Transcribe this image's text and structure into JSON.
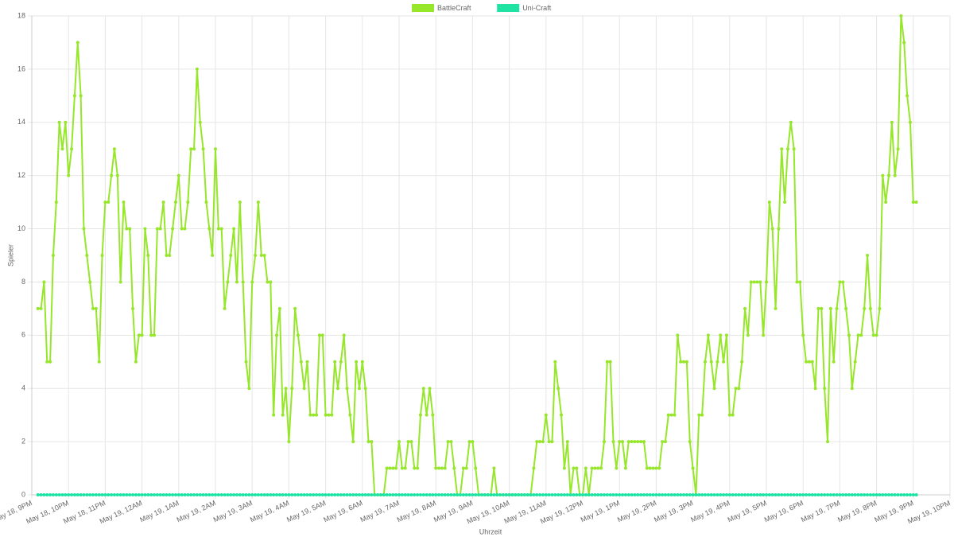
{
  "chart_data": {
    "type": "line",
    "x_label": "Uhrzeit",
    "y_label": "Spieler",
    "legend": "top",
    "grid": true,
    "ylim": [
      0,
      18
    ],
    "yticks": [
      0,
      2,
      4,
      6,
      8,
      10,
      12,
      14,
      16,
      18
    ],
    "categories": [
      "May 18, 9PM",
      null,
      null,
      null,
      null,
      null,
      null,
      null,
      null,
      null,
      null,
      null,
      "May 18, 10PM",
      null,
      null,
      null,
      null,
      null,
      null,
      null,
      null,
      null,
      null,
      null,
      "May 18, 11PM",
      null,
      null,
      null,
      null,
      null,
      null,
      null,
      null,
      null,
      null,
      null,
      "May 19, 12AM",
      null,
      null,
      null,
      null,
      null,
      null,
      null,
      null,
      null,
      null,
      null,
      "May 19, 1AM",
      null,
      null,
      null,
      null,
      null,
      null,
      null,
      null,
      null,
      null,
      null,
      "May 19, 2AM",
      null,
      null,
      null,
      null,
      null,
      null,
      null,
      null,
      null,
      null,
      null,
      "May 19, 3AM",
      null,
      null,
      null,
      null,
      null,
      null,
      null,
      null,
      null,
      null,
      null,
      "May 19, 4AM",
      null,
      null,
      null,
      null,
      null,
      null,
      null,
      null,
      null,
      null,
      null,
      "May 19, 5AM",
      null,
      null,
      null,
      null,
      null,
      null,
      null,
      null,
      null,
      null,
      null,
      "May 19, 6AM",
      null,
      null,
      null,
      null,
      null,
      null,
      null,
      null,
      null,
      null,
      null,
      "May 19, 7AM",
      null,
      null,
      null,
      null,
      null,
      null,
      null,
      null,
      null,
      null,
      null,
      "May 19, 8AM",
      null,
      null,
      null,
      null,
      null,
      null,
      null,
      null,
      null,
      null,
      null,
      "May 19, 9AM",
      null,
      null,
      null,
      null,
      null,
      null,
      null,
      null,
      null,
      null,
      null,
      "May 19, 10AM",
      null,
      null,
      null,
      null,
      null,
      null,
      null,
      null,
      null,
      null,
      null,
      "May 19, 11AM",
      null,
      null,
      null,
      null,
      null,
      null,
      null,
      null,
      null,
      null,
      null,
      "May 19, 12PM",
      null,
      null,
      null,
      null,
      null,
      null,
      null,
      null,
      null,
      null,
      null,
      "May 19, 1PM",
      null,
      null,
      null,
      null,
      null,
      null,
      null,
      null,
      null,
      null,
      null,
      "May 19, 2PM",
      null,
      null,
      null,
      null,
      null,
      null,
      null,
      null,
      null,
      null,
      null,
      "May 19, 3PM",
      null,
      null,
      null,
      null,
      null,
      null,
      null,
      null,
      null,
      null,
      null,
      "May 19, 4PM",
      null,
      null,
      null,
      null,
      null,
      null,
      null,
      null,
      null,
      null,
      null,
      "May 19, 5PM",
      null,
      null,
      null,
      null,
      null,
      null,
      null,
      null,
      null,
      null,
      null,
      "May 19, 6PM",
      null,
      null,
      null,
      null,
      null,
      null,
      null,
      null,
      null,
      null,
      null,
      "May 19, 7PM",
      null,
      null,
      null,
      null,
      null,
      null,
      null,
      null,
      null,
      null,
      null,
      "May 19, 8PM",
      null,
      null,
      null,
      null,
      null,
      null,
      null,
      null,
      null,
      null,
      null,
      "May 19, 9PM",
      null,
      null,
      null,
      null,
      null,
      null,
      null,
      null,
      null,
      null,
      null,
      "May 19, 10PM"
    ],
    "series": [
      {
        "name": "BattleCraft",
        "color": "#96e62a",
        "values": [
          null,
          null,
          7,
          7,
          8,
          5,
          5,
          9,
          11,
          14,
          13,
          14,
          12,
          13,
          15,
          17,
          15,
          10,
          9,
          8,
          7,
          7,
          5,
          9,
          11,
          11,
          12,
          13,
          12,
          8,
          11,
          10,
          10,
          7,
          5,
          6,
          6,
          10,
          9,
          6,
          6,
          10,
          10,
          11,
          9,
          9,
          10,
          11,
          12,
          10,
          10,
          11,
          13,
          13,
          16,
          14,
          13,
          11,
          10,
          9,
          13,
          10,
          10,
          7,
          8,
          9,
          10,
          8,
          11,
          8,
          5,
          4,
          8,
          9,
          11,
          9,
          9,
          8,
          8,
          3,
          6,
          7,
          3,
          4,
          2,
          4,
          7,
          6,
          5,
          4,
          5,
          3,
          3,
          3,
          6,
          6,
          3,
          3,
          3,
          5,
          4,
          5,
          6,
          4,
          3,
          2,
          5,
          4,
          5,
          4,
          2,
          2,
          0,
          0,
          0,
          0,
          1,
          1,
          1,
          1,
          2,
          1,
          1,
          2,
          2,
          1,
          1,
          3,
          4,
          3,
          4,
          3,
          1,
          1,
          1,
          1,
          2,
          2,
          1,
          0,
          0,
          1,
          1,
          2,
          2,
          1,
          0,
          0,
          0,
          0,
          0,
          1,
          0,
          0,
          0,
          0,
          0,
          0,
          0,
          0,
          0,
          0,
          0,
          0,
          1,
          2,
          2,
          2,
          3,
          2,
          2,
          5,
          4,
          3,
          1,
          2,
          0,
          1,
          1,
          0,
          0,
          1,
          0,
          1,
          1,
          1,
          1,
          2,
          5,
          5,
          2,
          1,
          2,
          2,
          1,
          2,
          2,
          2,
          2,
          2,
          2,
          1,
          1,
          1,
          1,
          1,
          2,
          2,
          3,
          3,
          3,
          6,
          5,
          5,
          5,
          2,
          1,
          0,
          3,
          3,
          5,
          6,
          5,
          4,
          5,
          6,
          5,
          6,
          3,
          3,
          4,
          4,
          5,
          7,
          6,
          8,
          8,
          8,
          8,
          6,
          8,
          11,
          10,
          7,
          10,
          13,
          11,
          13,
          14,
          13,
          8,
          8,
          6,
          5,
          5,
          5,
          4,
          7,
          7,
          4,
          2,
          7,
          5,
          7,
          8,
          8,
          7,
          6,
          4,
          5,
          6,
          6,
          7,
          9,
          7,
          6,
          6,
          7,
          12,
          11,
          12,
          14,
          12,
          13,
          18,
          17,
          15,
          14,
          11,
          11,
          null,
          null,
          null,
          null,
          null,
          null,
          null,
          null,
          null,
          null,
          null
        ]
      },
      {
        "name": "Uni-Craft",
        "color": "#1ee3a3",
        "values": [
          null,
          null,
          0,
          0,
          0,
          0,
          0,
          0,
          0,
          0,
          0,
          0,
          0,
          0,
          0,
          0,
          0,
          0,
          0,
          0,
          0,
          0,
          0,
          0,
          0,
          0,
          0,
          0,
          0,
          0,
          0,
          0,
          0,
          0,
          0,
          0,
          0,
          0,
          0,
          0,
          0,
          0,
          0,
          0,
          0,
          0,
          0,
          0,
          0,
          0,
          0,
          0,
          0,
          0,
          0,
          0,
          0,
          0,
          0,
          0,
          0,
          0,
          0,
          0,
          0,
          0,
          0,
          0,
          0,
          0,
          0,
          0,
          0,
          0,
          0,
          0,
          0,
          0,
          0,
          0,
          0,
          0,
          0,
          0,
          0,
          0,
          0,
          0,
          0,
          0,
          0,
          0,
          0,
          0,
          0,
          0,
          0,
          0,
          0,
          0,
          0,
          0,
          0,
          0,
          0,
          0,
          0,
          0,
          0,
          0,
          0,
          0,
          0,
          0,
          0,
          0,
          0,
          0,
          0,
          0,
          0,
          0,
          0,
          0,
          0,
          0,
          0,
          0,
          0,
          0,
          0,
          0,
          0,
          0,
          0,
          0,
          0,
          0,
          0,
          0,
          0,
          0,
          0,
          0,
          0,
          0,
          0,
          0,
          0,
          0,
          0,
          0,
          0,
          0,
          0,
          0,
          0,
          0,
          0,
          0,
          0,
          0,
          0,
          0,
          0,
          0,
          0,
          0,
          0,
          0,
          0,
          0,
          0,
          0,
          0,
          0,
          0,
          0,
          0,
          0,
          0,
          0,
          0,
          0,
          0,
          0,
          0,
          0,
          0,
          0,
          0,
          0,
          0,
          0,
          0,
          0,
          0,
          0,
          0,
          0,
          0,
          0,
          0,
          0,
          0,
          0,
          0,
          0,
          0,
          0,
          0,
          0,
          0,
          0,
          0,
          0,
          0,
          0,
          0,
          0,
          0,
          0,
          0,
          0,
          0,
          0,
          0,
          0,
          0,
          0,
          0,
          0,
          0,
          0,
          0,
          0,
          0,
          0,
          0,
          0,
          0,
          0,
          0,
          0,
          0,
          0,
          0,
          0,
          0,
          0,
          0,
          0,
          0,
          0,
          0,
          0,
          0,
          0,
          0,
          0,
          0,
          0,
          0,
          0,
          0,
          0,
          0,
          0,
          0,
          0,
          0,
          0,
          0,
          0,
          0,
          0,
          0,
          0,
          0,
          0,
          0,
          0,
          0,
          0,
          0,
          0,
          0,
          0,
          0,
          0,
          null,
          null,
          null,
          null,
          null,
          null,
          null,
          null,
          null,
          null,
          null
        ]
      }
    ]
  }
}
